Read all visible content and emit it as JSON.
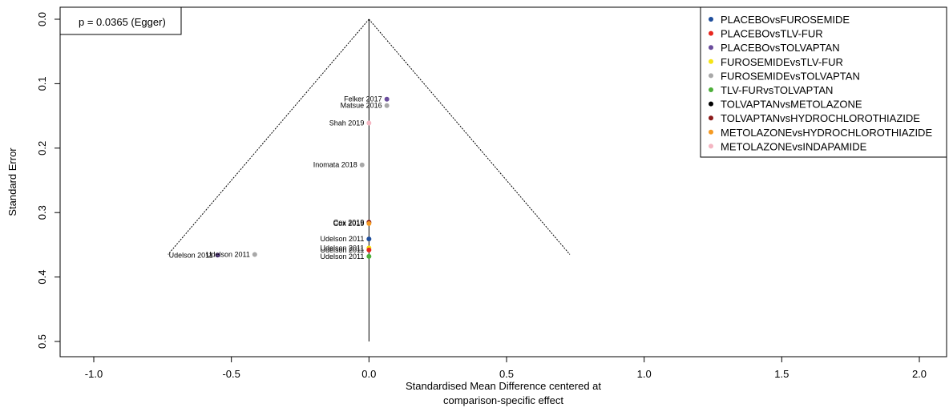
{
  "chart_data": {
    "type": "scatter",
    "subtype": "funnel",
    "title": "",
    "annotation": "p = 0.0365 (Egger)",
    "xlabel_lines": [
      "Standardised Mean Difference centered at",
      "comparison-specific effect"
    ],
    "ylabel": "Standard Error",
    "xlim": [
      -1.1,
      2.1
    ],
    "ylim": [
      0,
      0.5
    ],
    "y_reversed": true,
    "x_ticks": [
      -1.0,
      -0.5,
      0.0,
      0.5,
      1.0,
      1.5,
      2.0
    ],
    "x_tick_labels": [
      "-1.0",
      "-0.5",
      "0.0",
      "0.5",
      "1.0",
      "1.5",
      "2.0"
    ],
    "y_ticks": [
      0.0,
      0.1,
      0.2,
      0.3,
      0.4,
      0.5
    ],
    "y_tick_labels": [
      "0.0",
      "0.1",
      "0.2",
      "0.3",
      "0.4",
      "0.5"
    ],
    "grid": false,
    "legend_position": "top-right",
    "funnel": {
      "apex": [
        0,
        0
      ],
      "left_base": [
        -0.73,
        0.365
      ],
      "right_base": [
        0.73,
        0.365
      ],
      "center_line_x": 0,
      "center_line_ymax": 0.5
    },
    "series": [
      {
        "name": "PLACEBOvsFUROSEMIDE",
        "color": "#1f4e9c"
      },
      {
        "name": "PLACEBOvsTLV-FUR",
        "color": "#e8271f"
      },
      {
        "name": "PLACEBOvsTOLVAPTAN",
        "color": "#6a4c9c"
      },
      {
        "name": "FUROSEMIDEvsTLV-FUR",
        "color": "#f5e415"
      },
      {
        "name": "FUROSEMIDEvsTOLVAPTAN",
        "color": "#a8a8a8"
      },
      {
        "name": "TLV-FURvsTOLVAPTAN",
        "color": "#4daf3a"
      },
      {
        "name": "TOLVAPTANvsMETOLAZONE",
        "color": "#000000"
      },
      {
        "name": "TOLVAPTANvsHYDROCHLOROTHIAZIDE",
        "color": "#8b1a1a"
      },
      {
        "name": "METOLAZONEvsHYDROCHLOROTHIAZIDE",
        "color": "#f59a23"
      },
      {
        "name": "METOLAZONEvsINDAPAMIDE",
        "color": "#f4b6c2"
      }
    ],
    "points": [
      {
        "study": "Felker 2017",
        "x": 0.065,
        "y": 0.124,
        "series": 2
      },
      {
        "study": "Matsue 2016",
        "x": 0.065,
        "y": 0.134,
        "series": 4
      },
      {
        "study": "Shah 2019",
        "x": 0.0,
        "y": 0.161,
        "series": 9
      },
      {
        "study": "Inomata 2018",
        "x": -0.025,
        "y": 0.226,
        "series": 4
      },
      {
        "study": "Cox 2019",
        "x": 0.0,
        "y": 0.315,
        "series": 7
      },
      {
        "study": "Cox 2019",
        "x": 0.0,
        "y": 0.317,
        "series": 8
      },
      {
        "study": "Udelson 2011",
        "x": 0.0,
        "y": 0.341,
        "series": 0
      },
      {
        "study": "Udelson 2011",
        "x": 0.0,
        "y": 0.355,
        "series": 3
      },
      {
        "study": "Udelson 2011",
        "x": 0.0,
        "y": 0.358,
        "series": 1
      },
      {
        "study": "Udelson 2011",
        "x": 0.0,
        "y": 0.368,
        "series": 5
      },
      {
        "study": "Udelson 2011",
        "x": -0.415,
        "y": 0.365,
        "series": 4
      },
      {
        "study": "Udelson 2011",
        "x": -0.55,
        "y": 0.366,
        "series": 2
      }
    ]
  }
}
